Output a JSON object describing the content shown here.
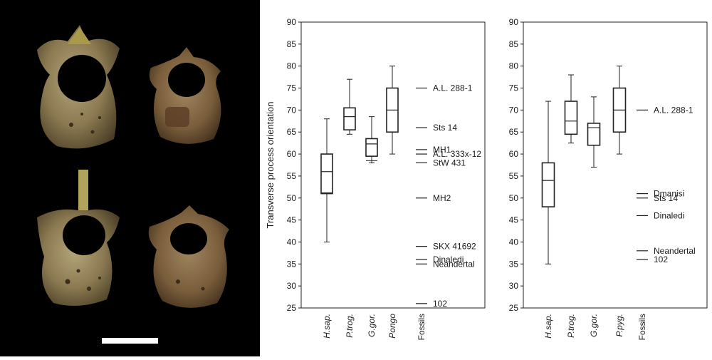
{
  "chart_data": [
    {
      "type": "box",
      "title": "",
      "ylabel": "Transverse process orientation",
      "ylim": [
        25,
        90
      ],
      "yticks": [
        25,
        30,
        35,
        40,
        45,
        50,
        55,
        60,
        65,
        70,
        75,
        80,
        85,
        90
      ],
      "categories": [
        "H.sap.",
        "P.trog.",
        "G.gor.",
        "Pongo",
        "Fossils"
      ],
      "boxes": [
        {
          "category": "H.sap.",
          "min": 40,
          "q1": 51,
          "median": 56,
          "q3": 60,
          "max": 68,
          "extra_line": 51.2
        },
        {
          "category": "P.trog.",
          "min": 64.5,
          "q1": 65.5,
          "median": 68.5,
          "q3": 70.5,
          "max": 77
        },
        {
          "category": "G.gor.",
          "min": 58,
          "q1": 59.5,
          "median": 62.3,
          "q3": 63.5,
          "max": 68.5,
          "extra_line": 58.5
        },
        {
          "category": "Pongo",
          "min": 60,
          "q1": 65,
          "median": 70,
          "q3": 75,
          "max": 80
        }
      ],
      "fossils": [
        {
          "label": "A.L. 288-1",
          "value": 75
        },
        {
          "label": "Sts 14",
          "value": 66
        },
        {
          "label": "MH1",
          "value": 61
        },
        {
          "label": "A.L. 333x-12",
          "value": 60
        },
        {
          "label": "StW 431",
          "value": 58
        },
        {
          "label": "MH2",
          "value": 50
        },
        {
          "label": "SKX 41692",
          "value": 39
        },
        {
          "label": "Dinaledi",
          "value": 36
        },
        {
          "label": "Neandertal",
          "value": 35
        },
        {
          "label": "102",
          "value": 26
        }
      ]
    },
    {
      "type": "box",
      "title": "",
      "ylabel": "",
      "ylim": [
        25,
        90
      ],
      "yticks": [
        25,
        30,
        35,
        40,
        45,
        50,
        55,
        60,
        65,
        70,
        75,
        80,
        85,
        90
      ],
      "categories": [
        "H.sap.",
        "P.trog.",
        "G.gor.",
        "P.pyg.",
        "Fossils"
      ],
      "boxes": [
        {
          "category": "H.sap.",
          "min": 35,
          "q1": 48,
          "median": 54,
          "q3": 58,
          "max": 72
        },
        {
          "category": "P.trog.",
          "min": 62.5,
          "q1": 64.5,
          "median": 67.5,
          "q3": 72,
          "max": 78
        },
        {
          "category": "G.gor.",
          "min": 57,
          "q1": 62,
          "median": 66,
          "q3": 67,
          "max": 73
        },
        {
          "category": "P.pyg.",
          "min": 60,
          "q1": 65,
          "median": 70,
          "q3": 75,
          "max": 80
        }
      ],
      "fossils": [
        {
          "label": "A.L. 288-1",
          "value": 70
        },
        {
          "label": "Dmanisi",
          "value": 51
        },
        {
          "label": "Sts 14",
          "value": 50
        },
        {
          "label": "Dinaledi",
          "value": 46
        },
        {
          "label": "Neandertal",
          "value": 38
        },
        {
          "label": "102",
          "value": 36
        }
      ]
    }
  ],
  "photo_panel": {
    "background": "#000000",
    "bone_color": "#8a7a55",
    "scale_bar_color": "#ffffff"
  }
}
